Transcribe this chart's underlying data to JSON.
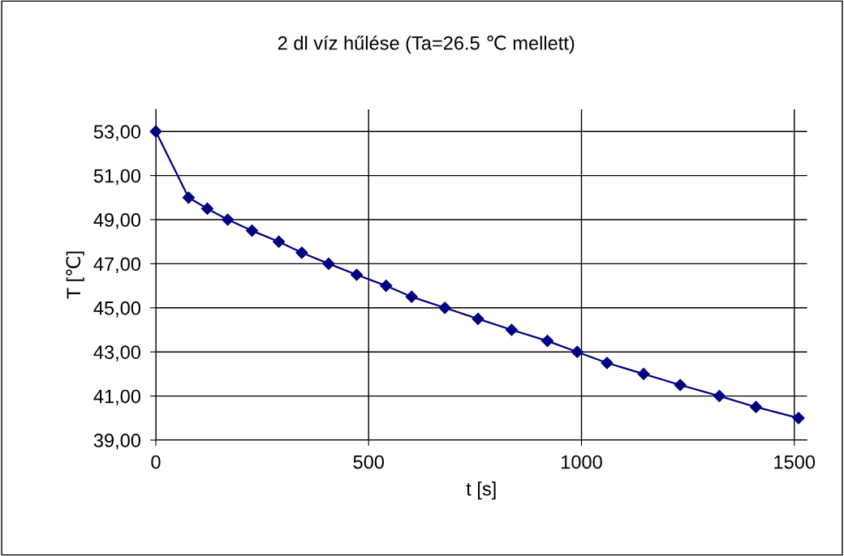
{
  "chart_data": {
    "type": "line",
    "title": "2 dl víz hűlése (Ta=26.5 ℃ mellett)",
    "xlabel": "t [s]",
    "ylabel": "T [℃]",
    "x": [
      0,
      77,
      121,
      169,
      226,
      289,
      343,
      406,
      472,
      541,
      601,
      679,
      757,
      836,
      920,
      990,
      1060,
      1146,
      1232,
      1324,
      1410,
      1510
    ],
    "series": [
      {
        "color": "#000080",
        "values": [
          53,
          50,
          49.5,
          49,
          48.5,
          48,
          47.5,
          47,
          46.5,
          46,
          45.5,
          45,
          44.5,
          44,
          43.5,
          43,
          42.5,
          42,
          41.5,
          41,
          40.5,
          40
        ]
      }
    ],
    "xlim": [
      0,
      1530
    ],
    "xticks": [
      0,
      500,
      1000,
      1500
    ],
    "ylim": [
      39,
      54
    ],
    "yticks": [
      {
        "value": 39,
        "label": "39,00"
      },
      {
        "value": 41,
        "label": "41,00"
      },
      {
        "value": 43,
        "label": "43,00"
      },
      {
        "value": 45,
        "label": "45,00"
      },
      {
        "value": 47,
        "label": "47,00"
      },
      {
        "value": 49,
        "label": "49,00"
      },
      {
        "value": 51,
        "label": "51,00"
      },
      {
        "value": 53,
        "label": "53,00"
      }
    ],
    "grid": true,
    "legend": false,
    "marker": "diamond",
    "line_style": "solid"
  }
}
